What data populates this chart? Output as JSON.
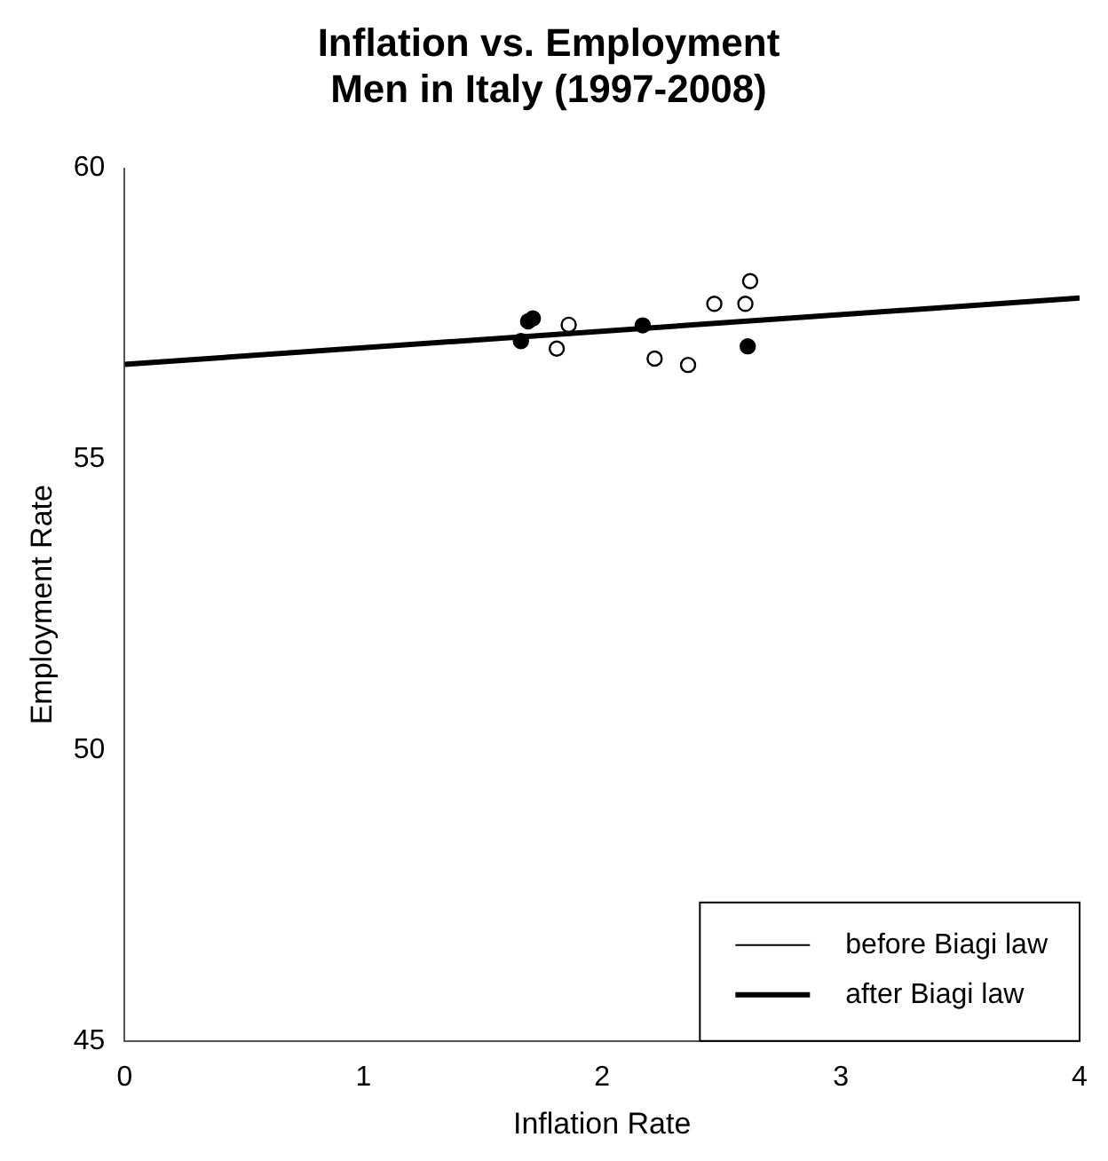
{
  "chart_data": {
    "type": "scatter",
    "title": "Inflation vs. Employment\nMen in Italy (1997-2008)",
    "xlabel": "Inflation Rate",
    "ylabel": "Employment Rate",
    "xlim": [
      0,
      4
    ],
    "xticks": [
      0,
      1,
      2,
      3,
      4
    ],
    "ylim": [
      45,
      60
    ],
    "yticks": [
      45,
      50,
      55,
      60
    ],
    "grid": false,
    "legend": "bottom right",
    "series": [
      {
        "name": "before Biagi law",
        "color": "#000000",
        "marker": "circle",
        "x": [
          1.86,
          1.81,
          2.22,
          2.36,
          2.47,
          2.6,
          2.62
        ],
        "values": [
          57.31,
          56.9,
          56.73,
          56.62,
          57.67,
          57.67,
          58.06
        ]
      },
      {
        "name": "after Biagi law",
        "color": "#000000",
        "marker": "circle",
        "x": [
          1.66,
          1.69,
          1.71,
          2.17,
          2.61
        ],
        "values": [
          57.03,
          57.37,
          57.42,
          57.3,
          56.94
        ]
      },
      {
        "type": "line",
        "color": "#000000",
        "marker": "none",
        "x": [
          0,
          4
        ],
        "values": [
          56.63,
          57.77
        ]
      }
    ]
  }
}
